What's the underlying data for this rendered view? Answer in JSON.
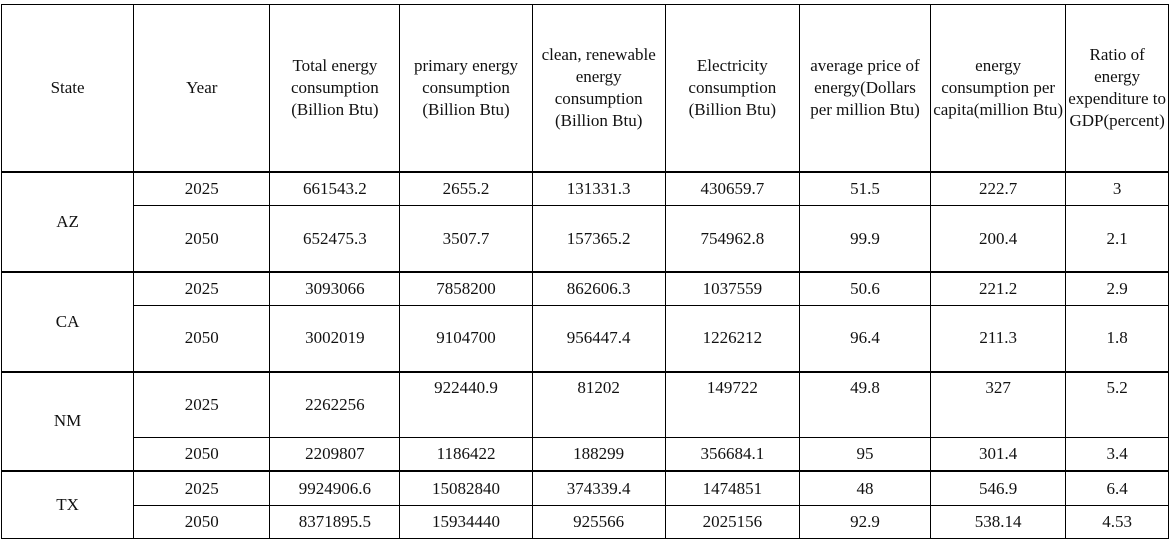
{
  "table": {
    "headers": [
      "State",
      "Year",
      "Total energy consumption (Billion Btu)",
      "primary energy consumption (Billion Btu)",
      "clean, renewable energy consumption (Billion Btu)",
      "Electricity consumption (Billion Btu)",
      "average price of energy(Dollars per million Btu)",
      "energy consumption per capita(million Btu)",
      "Ratio of energy expenditure to GDP(percent)"
    ],
    "groups": [
      {
        "state": "AZ",
        "rows": [
          [
            "2025",
            "661543.2",
            "2655.2",
            "131331.3",
            "430659.7",
            "51.5",
            "222.7",
            "3"
          ],
          [
            "2050",
            "652475.3",
            "3507.7",
            "157365.2",
            "754962.8",
            "99.9",
            "200.4",
            "2.1"
          ]
        ]
      },
      {
        "state": "CA",
        "rows": [
          [
            "2025",
            "3093066",
            "7858200",
            "862606.3",
            "1037559",
            "50.6",
            "221.2",
            "2.9"
          ],
          [
            "2050",
            "3002019",
            "9104700",
            "956447.4",
            "1226212",
            "96.4",
            "211.3",
            "1.8"
          ]
        ]
      },
      {
        "state": "NM",
        "rows": [
          [
            "2025",
            "2262256",
            "922440.9",
            "81202",
            "149722",
            "49.8",
            "327",
            "5.2"
          ],
          [
            "2050",
            "2209807",
            "1186422",
            "188299",
            "356684.1",
            "95",
            "301.4",
            "3.4"
          ]
        ]
      },
      {
        "state": "TX",
        "rows": [
          [
            "2025",
            "9924906.6",
            "15082840",
            "374339.4",
            "1474851",
            "48",
            "546.9",
            "6.4"
          ],
          [
            "2050",
            "8371895.5",
            "15934440",
            "925566",
            "2025156",
            "92.9",
            "538.14",
            "4.53"
          ]
        ]
      }
    ]
  }
}
